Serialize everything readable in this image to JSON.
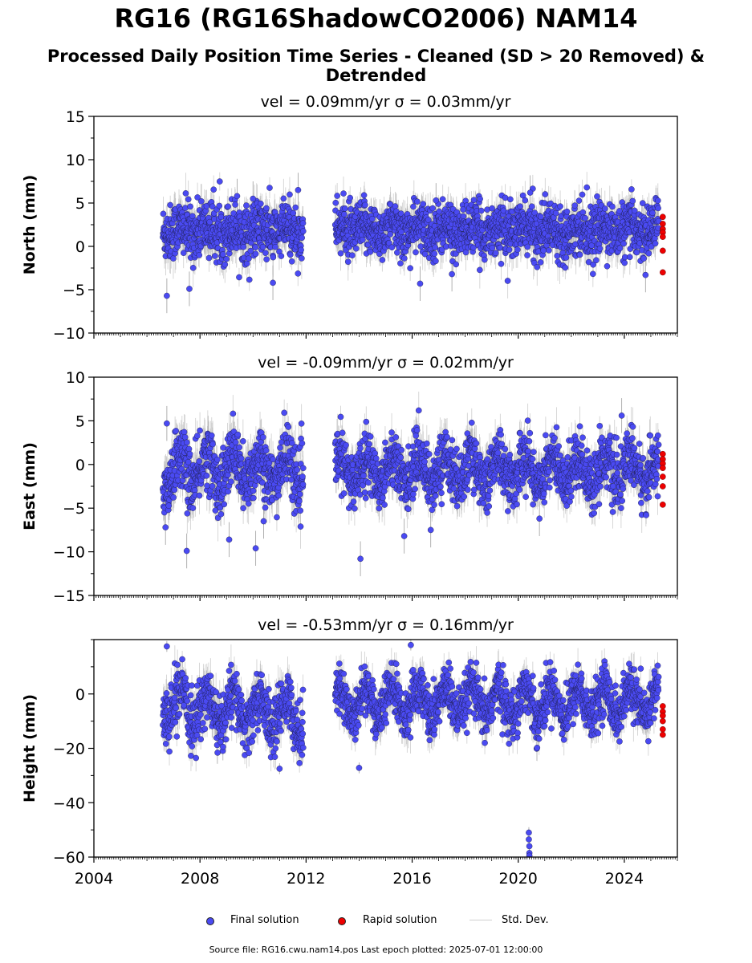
{
  "title": "RG16 (RG16ShadowCO2006) NAM14",
  "subtitle": "Processed Daily Position Time Series - Cleaned (SD > 20 Removed) & Detrended",
  "footer": "Source file: RG16.cwu.nam14.pos  Last epoch plotted: 2025-07-01 12:00:00",
  "legend": {
    "final": "Final solution",
    "rapid": "Rapid solution",
    "std": "Std. Dev."
  },
  "colors": {
    "final": "#4a4af2",
    "rapid": "#ee0000",
    "stddev": "#a8a8a8"
  },
  "chart_data": [
    {
      "type": "scatter",
      "panel_title": "vel = 0.09mm/yr   σ = 0.03mm/yr",
      "ylabel": "North (mm)",
      "xlim": [
        2004,
        2026
      ],
      "ylim": [
        -10,
        15
      ],
      "yticks": [
        -10,
        -5,
        0,
        5,
        10,
        15
      ],
      "xticks": [
        2004,
        2008,
        2012,
        2016,
        2020,
        2024
      ],
      "series": [
        {
          "name": "Final solution",
          "note": "daily points 2006.6–2011.9 and 2013.1–2025.3; mean ≈ 1.8 mm, scatter ≈ ±3 mm",
          "segments": [
            {
              "start": 2006.6,
              "end": 2011.9,
              "mean": 1.8,
              "spread": 1.6,
              "seasonal": 0.4
            },
            {
              "start": 2013.1,
              "end": 2025.3,
              "mean": 1.9,
              "spread": 1.5,
              "seasonal": 0.4
            }
          ],
          "outliers": [
            [
              2006.75,
              -5.7
            ],
            [
              2007.6,
              -4.9
            ],
            [
              2008.05,
              5.2
            ],
            [
              2009.4,
              5.8
            ],
            [
              2010.0,
              5.5
            ],
            [
              2010.75,
              -4.2
            ],
            [
              2011.7,
              6.5
            ],
            [
              2016.3,
              -4.3
            ],
            [
              2016.9,
              5.3
            ],
            [
              2017.5,
              -3.2
            ],
            [
              2020.45,
              6.2
            ],
            [
              2024.8,
              -3.3
            ]
          ]
        },
        {
          "name": "Rapid solution",
          "points": [
            [
              2025.45,
              3.4
            ],
            [
              2025.45,
              2.6
            ],
            [
              2025.45,
              2.0
            ],
            [
              2025.45,
              1.6
            ],
            [
              2025.45,
              1.1
            ],
            [
              2025.45,
              -0.5
            ],
            [
              2025.45,
              -3.0
            ]
          ]
        }
      ]
    },
    {
      "type": "scatter",
      "panel_title": "vel = -0.09mm/yr   σ = 0.02mm/yr",
      "ylabel": "East (mm)",
      "xlim": [
        2004,
        2026
      ],
      "ylim": [
        -15,
        10
      ],
      "yticks": [
        -15,
        -10,
        -5,
        0,
        5,
        10
      ],
      "xticks": [
        2004,
        2008,
        2012,
        2016,
        2020,
        2024
      ],
      "series": [
        {
          "name": "Final solution",
          "segments": [
            {
              "start": 2006.6,
              "end": 2011.9,
              "mean": -0.6,
              "spread": 1.8,
              "seasonal": 1.8
            },
            {
              "start": 2013.1,
              "end": 2025.3,
              "mean": -0.6,
              "spread": 1.6,
              "seasonal": 1.5
            }
          ],
          "outliers": [
            [
              2006.75,
              4.7
            ],
            [
              2006.7,
              -7.2
            ],
            [
              2007.5,
              -9.9
            ],
            [
              2009.1,
              -8.6
            ],
            [
              2010.1,
              -9.6
            ],
            [
              2010.4,
              -6.5
            ],
            [
              2014.05,
              -10.8
            ],
            [
              2015.7,
              -8.2
            ],
            [
              2016.7,
              -7.5
            ],
            [
              2020.8,
              -6.2
            ],
            [
              2023.9,
              5.6
            ]
          ]
        },
        {
          "name": "Rapid solution",
          "points": [
            [
              2025.45,
              1.2
            ],
            [
              2025.45,
              0.6
            ],
            [
              2025.45,
              0.1
            ],
            [
              2025.45,
              -0.4
            ],
            [
              2025.45,
              -1.4
            ],
            [
              2025.45,
              -2.5
            ],
            [
              2025.45,
              -4.6
            ]
          ]
        }
      ]
    },
    {
      "type": "scatter",
      "panel_title": "vel = -0.53mm/yr   σ = 0.16mm/yr",
      "ylabel": "Height (mm)",
      "xlim": [
        2004,
        2026
      ],
      "ylim": [
        -60,
        20
      ],
      "yticks": [
        -60,
        -40,
        -20,
        0
      ],
      "xticks": [
        2004,
        2008,
        2012,
        2016,
        2020,
        2024
      ],
      "xtick_labels": [
        "2004",
        "2008",
        "2012",
        "2016",
        "2020",
        "2024"
      ],
      "series": [
        {
          "name": "Final solution",
          "segments": [
            {
              "start": 2006.6,
              "end": 2011.9,
              "mean": -7.5,
              "spread": 5.0,
              "seasonal": 6.0,
              "trend_end": -13
            },
            {
              "start": 2013.1,
              "end": 2025.3,
              "mean": -6.0,
              "spread": 4.5,
              "seasonal": 5.5,
              "trend_end": -6
            }
          ],
          "outliers": [
            [
              2006.75,
              17.5
            ],
            [
              2011.0,
              -27.5
            ],
            [
              2014.0,
              -27.2
            ],
            [
              2015.95,
              18.0
            ],
            [
              2020.4,
              -51.0
            ],
            [
              2020.4,
              -53.5
            ],
            [
              2020.42,
              -56.0
            ],
            [
              2020.42,
              -58.5
            ],
            [
              2020.42,
              -59.5
            ]
          ]
        },
        {
          "name": "Rapid solution",
          "points": [
            [
              2025.45,
              -4.5
            ],
            [
              2025.45,
              -6.5
            ],
            [
              2025.45,
              -8.0
            ],
            [
              2025.45,
              -10.0
            ],
            [
              2025.45,
              -13.0
            ],
            [
              2025.45,
              -15.0
            ]
          ]
        }
      ]
    }
  ]
}
